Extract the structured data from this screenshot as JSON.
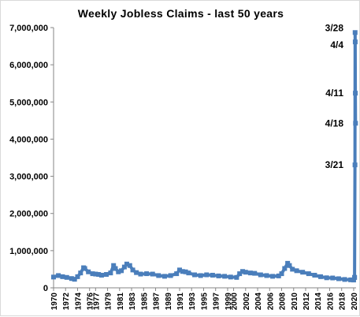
{
  "chart_data": {
    "type": "line",
    "title": "Weekly Jobless Claims - last 50 years",
    "xlabel": "",
    "ylabel": "",
    "ylim": [
      0,
      7000000
    ],
    "y_ticks": [
      0,
      1000000,
      2000000,
      3000000,
      4000000,
      5000000,
      6000000,
      7000000
    ],
    "y_tick_labels": [
      "0",
      "1,000,000",
      "2,000,000",
      "3,000,000",
      "4,000,000",
      "5,000,000",
      "6,000,000",
      "7,000,000"
    ],
    "xlim": [
      1970,
      2020.4
    ],
    "x_ticks": [
      1970,
      1972,
      1974,
      1976,
      1977,
      1979,
      1981,
      1983,
      1985,
      1987,
      1989,
      1991,
      1993,
      1995,
      1997,
      1999,
      2000,
      2002,
      2004,
      2006,
      2008,
      2010,
      2012,
      2014,
      2016,
      2018,
      2020
    ],
    "x_tick_labels": [
      "1970",
      "1972",
      "1974",
      "1976",
      "1977",
      "1979",
      "1981",
      "1983",
      "1985",
      "1987",
      "1989",
      "1991",
      "1993",
      "1995",
      "1997",
      "1999",
      "2000",
      "2002",
      "2004",
      "2006",
      "2008",
      "2010",
      "2012",
      "2014",
      "2016",
      "2018",
      "2020"
    ],
    "grid": false,
    "legend": "none",
    "series": [
      {
        "color": "#4a7ebb",
        "x": [
          1970.0,
          1970.8,
          1971.5,
          1972.2,
          1973.0,
          1973.5,
          1974.0,
          1974.5,
          1975.0,
          1975.2,
          1975.8,
          1976.5,
          1977.0,
          1977.5,
          1978.0,
          1978.8,
          1979.5,
          1980.0,
          1980.3,
          1980.8,
          1981.3,
          1981.8,
          1982.2,
          1982.7,
          1983.2,
          1983.8,
          1984.5,
          1985.5,
          1986.5,
          1987.5,
          1988.5,
          1989.5,
          1990.5,
          1991.0,
          1991.5,
          1992.0,
          1992.5,
          1993.5,
          1994.5,
          1995.5,
          1996.5,
          1997.5,
          1998.5,
          1999.5,
          2000.5,
          2001.0,
          2001.5,
          2002.0,
          2002.8,
          2003.5,
          2004.5,
          2005.5,
          2006.5,
          2007.5,
          2008.0,
          2008.5,
          2009.0,
          2009.3,
          2009.8,
          2010.5,
          2011.5,
          2012.5,
          2013.5,
          2014.5,
          2015.5,
          2016.5,
          2017.5,
          2018.5,
          2019.5,
          2020.0,
          2020.15
        ],
        "values": [
          290000,
          330000,
          300000,
          280000,
          250000,
          230000,
          300000,
          400000,
          540000,
          520000,
          430000,
          380000,
          370000,
          360000,
          340000,
          360000,
          400000,
          600000,
          520000,
          430000,
          460000,
          560000,
          640000,
          600000,
          480000,
          410000,
          370000,
          380000,
          370000,
          330000,
          310000,
          330000,
          380000,
          480000,
          440000,
          430000,
          400000,
          350000,
          330000,
          350000,
          340000,
          320000,
          310000,
          290000,
          280000,
          380000,
          440000,
          420000,
          400000,
          390000,
          350000,
          330000,
          310000,
          320000,
          380000,
          520000,
          660000,
          600000,
          500000,
          460000,
          420000,
          380000,
          340000,
          300000,
          270000,
          265000,
          245000,
          225000,
          215000,
          210000,
          280000
        ]
      },
      {
        "color": "#4a7ebb",
        "x": [
          2020.15,
          2020.22,
          2020.24,
          2020.26,
          2020.28,
          2020.31
        ],
        "values": [
          280000,
          3307000,
          6867000,
          6615000,
          5237000,
          4427000
        ]
      }
    ],
    "annotations": [
      {
        "text": "3/28",
        "value": 6867000
      },
      {
        "text": "4/4",
        "value": 6615000
      },
      {
        "text": "4/11",
        "value": 5237000
      },
      {
        "text": "4/18",
        "value": 4427000
      },
      {
        "text": "3/21",
        "value": 3307000
      }
    ]
  }
}
